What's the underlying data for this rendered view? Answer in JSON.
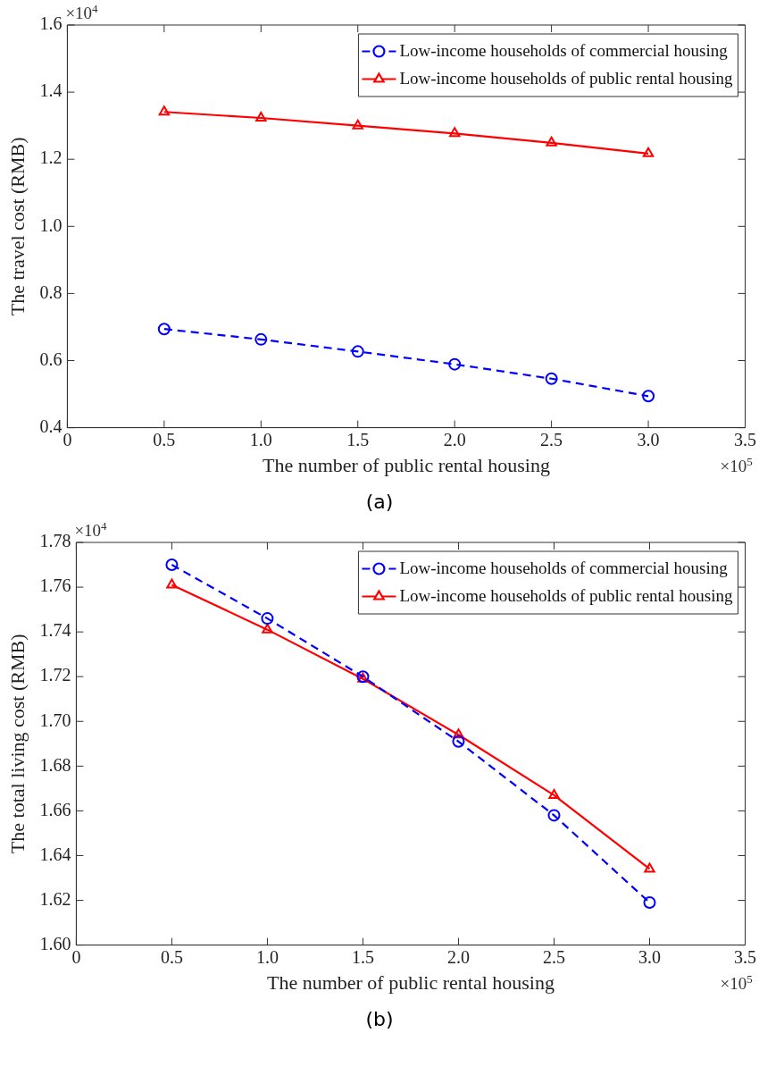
{
  "chart_data": [
    {
      "type": "line",
      "xlabel": "The number of public rental housing",
      "ylabel": "The travel cost (RMB)",
      "x": [
        0.5,
        1.0,
        1.5,
        2.0,
        2.5,
        3.0
      ],
      "series": [
        {
          "name": "Low-income households of commercial housing",
          "color": "#0000ff",
          "marker": "circle",
          "line_style": "dashed",
          "values": [
            0.694,
            0.663,
            0.627,
            0.589,
            0.546,
            0.494
          ]
        },
        {
          "name": "Low-income households of public rental housing",
          "color": "#ff0000",
          "marker": "triangle",
          "line_style": "solid",
          "values": [
            1.341,
            1.323,
            1.3,
            1.277,
            1.249,
            1.217
          ]
        }
      ],
      "xlim": [
        0,
        3.5
      ],
      "xticks": [
        0,
        {
          "value": 0.5,
          "label": "0.5"
        },
        {
          "value": 1,
          "label": "1.0"
        },
        {
          "value": 1.5,
          "label": "1.5"
        },
        {
          "value": 2,
          "label": "2.0"
        },
        {
          "value": 2.5,
          "label": "2.5"
        },
        {
          "value": 3,
          "label": "3.0"
        },
        {
          "value": 3.5,
          "label": "3.5"
        }
      ],
      "ylim": [
        0.4,
        1.6
      ],
      "yticks": [
        {
          "value": 0.4,
          "label": "0.4"
        },
        {
          "value": 0.6,
          "label": "0.6"
        },
        {
          "value": 0.8,
          "label": "0.8"
        },
        {
          "value": 1,
          "label": "1.0"
        },
        {
          "value": 1.2,
          "label": "1.2"
        },
        {
          "value": 1.4,
          "label": "1.4"
        },
        {
          "value": 1.6,
          "label": "1.6"
        }
      ],
      "grid": false,
      "legend": "top right",
      "annotations": [
        "×10$^{4}$",
        "×10$^{5}$",
        "(a)"
      ]
    },
    {
      "type": "line",
      "xlabel": "The number of public rental housing",
      "ylabel": "The total living cost (RMB)",
      "x": [
        0.5,
        1.0,
        1.5,
        2.0,
        2.5,
        3.0
      ],
      "series": [
        {
          "name": "Low-income households of commercial housing",
          "color": "#0000ff",
          "marker": "circle",
          "line_style": "dashed",
          "values": [
            1.77,
            1.746,
            1.72,
            1.691,
            1.658,
            1.619
          ]
        },
        {
          "name": "Low-income households of public rental housing",
          "color": "#ff0000",
          "marker": "triangle",
          "line_style": "solid",
          "values": [
            1.761,
            1.741,
            1.719,
            1.694,
            1.667,
            1.634
          ]
        }
      ],
      "xlim": [
        0,
        3.5
      ],
      "xticks": [
        0,
        {
          "value": 0.5,
          "label": "0.5"
        },
        {
          "value": 1,
          "label": "1.0"
        },
        {
          "value": 1.5,
          "label": "1.5"
        },
        {
          "value": 2,
          "label": "2.0"
        },
        {
          "value": 2.5,
          "label": "2.5"
        },
        {
          "value": 3,
          "label": "3.0"
        },
        {
          "value": 3.5,
          "label": "3.5"
        }
      ],
      "ylim": [
        1.6,
        1.78
      ],
      "yticks": [
        {
          "value": 1.6,
          "label": "1.60"
        },
        {
          "value": 1.62,
          "label": "1.62"
        },
        {
          "value": 1.64,
          "label": "1.64"
        },
        {
          "value": 1.66,
          "label": "1.66"
        },
        {
          "value": 1.68,
          "label": "1.68"
        },
        {
          "value": 1.7,
          "label": "1.70"
        },
        {
          "value": 1.72,
          "label": "1.72"
        },
        {
          "value": 1.74,
          "label": "1.74"
        },
        {
          "value": 1.76,
          "label": "1.76"
        },
        {
          "value": 1.78,
          "label": "1.78"
        }
      ],
      "grid": false,
      "legend": "top right",
      "annotations": [
        "×10$^{4}$",
        "×10$^{5}$",
        "(b)"
      ]
    }
  ]
}
